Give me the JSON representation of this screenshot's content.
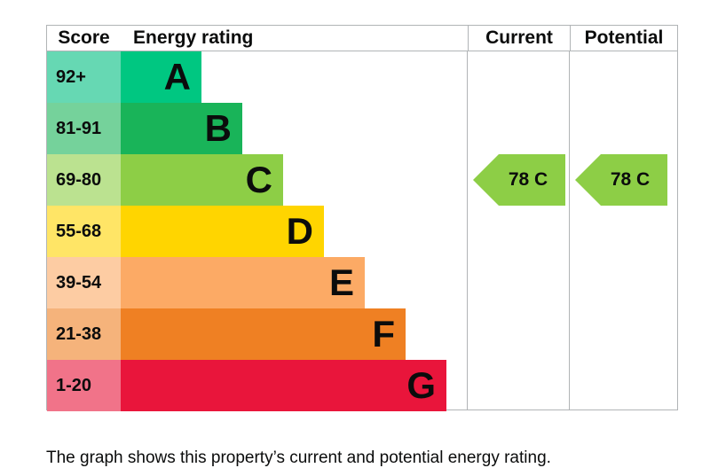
{
  "headers": {
    "score": "Score",
    "rating": "Energy rating",
    "current": "Current",
    "potential": "Potential"
  },
  "chart_data": {
    "type": "bar",
    "categories": [
      "A",
      "B",
      "C",
      "D",
      "E",
      "F",
      "G"
    ],
    "score_ranges": [
      "92+",
      "81-91",
      "69-80",
      "55-68",
      "39-54",
      "21-38",
      "1-20"
    ],
    "bar_colors": [
      "#00c781",
      "#19b459",
      "#8dce46",
      "#ffd500",
      "#fcaa65",
      "#ef8023",
      "#e9153b"
    ],
    "score_colors": [
      "#66d8b3",
      "#75d29b",
      "#bbe290",
      "#ffe566",
      "#fdcca3",
      "#f5b37b",
      "#f17389"
    ],
    "current": {
      "value": 78,
      "band": "C",
      "label": "78  C",
      "color": "#8dce46"
    },
    "potential": {
      "value": 78,
      "band": "C",
      "label": "78  C",
      "color": "#8dce46"
    }
  },
  "caption": "The graph shows this property’s current and potential energy rating."
}
